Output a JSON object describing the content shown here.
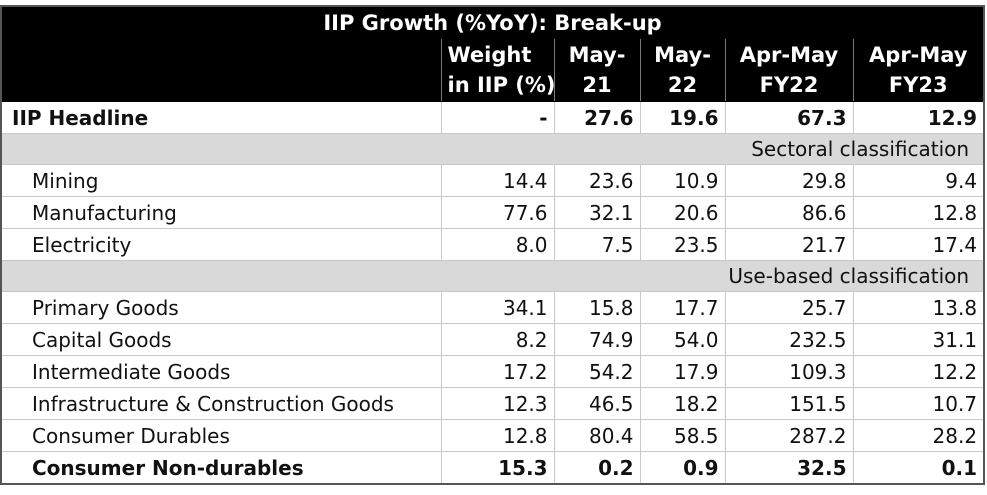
{
  "table": {
    "title": "IIP Growth (%YoY): Break-up",
    "headers": {
      "weight_line1": "Weight",
      "weight_line2": "in IIP (%)",
      "may21_line1": "May-",
      "may21_line2": "21",
      "may22_line1": "May-",
      "may22_line2": "22",
      "aprmay22_line1": "Apr-May",
      "aprmay22_line2": "FY22",
      "aprmay23_line1": "Apr-May",
      "aprmay23_line2": "FY23"
    },
    "headline": {
      "label": "IIP Headline",
      "weight": "-",
      "may21": "27.6",
      "may22": "19.6",
      "aprmay_fy22": "67.3",
      "aprmay_fy23": "12.9"
    },
    "sectoral_title": "Sectoral classification",
    "sectoral": [
      {
        "label": "Mining",
        "weight": "14.4",
        "may21": "23.6",
        "may22": "10.9",
        "aprmay_fy22": "29.8",
        "aprmay_fy23": "9.4"
      },
      {
        "label": "Manufacturing",
        "weight": "77.6",
        "may21": "32.1",
        "may22": "20.6",
        "aprmay_fy22": "86.6",
        "aprmay_fy23": "12.8"
      },
      {
        "label": "Electricity",
        "weight": "8.0",
        "may21": "7.5",
        "may22": "23.5",
        "aprmay_fy22": "21.7",
        "aprmay_fy23": "17.4"
      }
    ],
    "usebased_title": "Use-based classification",
    "usebased": [
      {
        "label": "Primary Goods",
        "weight": "34.1",
        "may21": "15.8",
        "may22": "17.7",
        "aprmay_fy22": "25.7",
        "aprmay_fy23": "13.8"
      },
      {
        "label": "Capital Goods",
        "weight": "8.2",
        "may21": "74.9",
        "may22": "54.0",
        "aprmay_fy22": "232.5",
        "aprmay_fy23": "31.1"
      },
      {
        "label": "Intermediate Goods",
        "weight": "17.2",
        "may21": "54.2",
        "may22": "17.9",
        "aprmay_fy22": "109.3",
        "aprmay_fy23": "12.2"
      },
      {
        "label": "Infrastructure & Construction Goods",
        "weight": "12.3",
        "may21": "46.5",
        "may22": "18.2",
        "aprmay_fy22": "151.5",
        "aprmay_fy23": "10.7"
      },
      {
        "label": "Consumer Durables",
        "weight": "12.8",
        "may21": "80.4",
        "may22": "58.5",
        "aprmay_fy22": "287.2",
        "aprmay_fy23": "28.2"
      },
      {
        "label": "Consumer Non-durables",
        "weight": "15.3",
        "may21": "0.2",
        "may22": "0.9",
        "aprmay_fy22": "32.5",
        "aprmay_fy23": "0.1"
      }
    ]
  }
}
